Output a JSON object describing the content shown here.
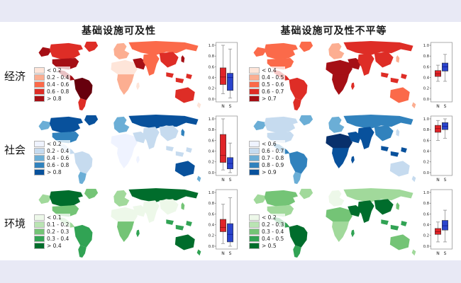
{
  "figure": {
    "columns": [
      {
        "title": "基础设施可及性"
      },
      {
        "title": "基础设施可及性不平等"
      }
    ],
    "rows": [
      {
        "label": "经济"
      },
      {
        "label": "社会"
      },
      {
        "label": "环境"
      }
    ]
  },
  "colors": {
    "band_background": "#e8e9f5",
    "north_box": "#e02428",
    "south_box": "#2a44cc"
  },
  "chart_data": {
    "type": "choropleth-maps-with-boxplots",
    "boxplot_groups": [
      "N",
      "S"
    ],
    "panels": [
      {
        "id": "economy-accessibility",
        "row": "经济",
        "column": "基础设施可及性",
        "palette": "reds",
        "legend": [
          {
            "label": "< 0.2",
            "color": "#fee5d9"
          },
          {
            "label": "0.2 - 0.4",
            "color": "#fcae91"
          },
          {
            "label": "0.4 - 0.6",
            "color": "#fb6a4a"
          },
          {
            "label": "0.6 - 0.8",
            "color": "#de2d26"
          },
          {
            "label": "> 0.8",
            "color": "#a50f15"
          }
        ],
        "map_regions": {
          "alaska": "#a50f15",
          "canada": "#de2d26",
          "usa": "#a50f15",
          "greenland": "#de2d26",
          "mexico": "#a50f15",
          "sa_n": "#67000d",
          "sa_s": "#de2d26",
          "europe": "#fcae91",
          "africa_n": "#fee5d9",
          "africa_s": "#fcae91",
          "madagascar": "#fee5d9",
          "russia": "#fb6a4a",
          "middle_east": "#a50f15",
          "central_asia": "#fb6a4a",
          "china": "#de2d26",
          "japan": "#a50f15",
          "se_asia": "#de2d26",
          "australia": "#de2d26",
          "nz": "#fee5d9"
        },
        "boxplot": {
          "ylim": [
            0,
            1
          ],
          "ticks": [
            1.0,
            0.8,
            0.6,
            0.4,
            0.2,
            0.0
          ],
          "groups": [
            {
              "label": "N",
              "color": "#e02428",
              "median_color": "#8f1014",
              "whisker_low": 0.1,
              "q1": 0.27,
              "median": 0.41,
              "q3": 0.58,
              "whisker_high": 1.0
            },
            {
              "label": "S",
              "color": "#2a44cc",
              "median_color": "#101e96",
              "whisker_low": 0.02,
              "q1": 0.16,
              "median": 0.4,
              "q3": 0.48,
              "whisker_high": 0.93
            }
          ]
        }
      },
      {
        "id": "economy-inequality",
        "row": "经济",
        "column": "基础设施可及性不平等",
        "palette": "reds",
        "legend": [
          {
            "label": "< 0.4",
            "color": "#fee5d9"
          },
          {
            "label": "0.4 - 0.5",
            "color": "#fcae91"
          },
          {
            "label": "0.5 - 0.6",
            "color": "#fb6a4a"
          },
          {
            "label": "0.6 - 0.7",
            "color": "#de2d26"
          },
          {
            "label": "> 0.7",
            "color": "#a50f15"
          }
        ],
        "map_regions": {
          "alaska": "#fb6a4a",
          "canada": "#fb6a4a",
          "usa": "#fb6a4a",
          "greenland": "#fb6a4a",
          "mexico": "#de2d26",
          "sa_n": "#de2d26",
          "sa_s": "#de2d26",
          "europe": "#fcae91",
          "africa_n": "#a50f15",
          "africa_s": "#a50f15",
          "madagascar": "#de2d26",
          "russia": "#de2d26",
          "middle_east": "#a50f15",
          "central_asia": "#de2d26",
          "china": "#de2d26",
          "japan": "#fcae91",
          "se_asia": "#de2d26",
          "australia": "#fb6a4a",
          "nz": "#fcae91"
        },
        "boxplot": {
          "ylim": [
            0,
            1
          ],
          "ticks": [
            1.0,
            0.8,
            0.6,
            0.4,
            0.2,
            0.0
          ],
          "groups": [
            {
              "label": "N",
              "color": "#e02428",
              "median_color": "#8f1014",
              "whisker_low": 0.33,
              "q1": 0.42,
              "median": 0.47,
              "q3": 0.53,
              "whisker_high": 0.63
            },
            {
              "label": "S",
              "color": "#2a44cc",
              "median_color": "#101e96",
              "whisker_low": 0.33,
              "q1": 0.52,
              "median": 0.6,
              "q3": 0.67,
              "whisker_high": 0.83
            }
          ]
        }
      },
      {
        "id": "society-accessibility",
        "row": "社会",
        "column": "基础设施可及性",
        "palette": "blues",
        "legend": [
          {
            "label": "< 0.2",
            "color": "#eff3ff"
          },
          {
            "label": "0.2 - 0.4",
            "color": "#c6dbef"
          },
          {
            "label": "0.4 - 0.6",
            "color": "#6baed6"
          },
          {
            "label": "0.6 - 0.8",
            "color": "#3182bd"
          },
          {
            "label": "> 0.8",
            "color": "#08519c"
          }
        ],
        "map_regions": {
          "alaska": "#6baed6",
          "canada": "#08519c",
          "usa": "#3182bd",
          "greenland": "#08519c",
          "mexico": "#c6dbef",
          "sa_n": "#c6dbef",
          "sa_s": "#6baed6",
          "europe": "#6baed6",
          "africa_n": "#eff3ff",
          "africa_s": "#eff3ff",
          "madagascar": "#eff3ff",
          "russia": "#08519c",
          "middle_east": "#c6dbef",
          "central_asia": "#c6dbef",
          "china": "#c6dbef",
          "japan": "#3182bd",
          "se_asia": "#c6dbef",
          "australia": "#08519c",
          "nz": "#6baed6"
        },
        "boxplot": {
          "ylim": [
            0,
            1
          ],
          "ticks": [
            1.0,
            0.8,
            0.6,
            0.4,
            0.2,
            0.0
          ],
          "groups": [
            {
              "label": "N",
              "color": "#e02428",
              "median_color": "#8f1014",
              "whisker_low": 0.05,
              "q1": 0.19,
              "median": 0.32,
              "q3": 0.71,
              "whisker_high": 1.0
            },
            {
              "label": "S",
              "color": "#2a44cc",
              "median_color": "#101e96",
              "whisker_low": 0.0,
              "q1": 0.07,
              "median": 0.17,
              "q3": 0.28,
              "whisker_high": 0.55
            }
          ]
        }
      },
      {
        "id": "society-inequality",
        "row": "社会",
        "column": "基础设施可及性不平等",
        "palette": "blues",
        "legend": [
          {
            "label": "< 0.6",
            "color": "#eff3ff"
          },
          {
            "label": "0.6 - 0.7",
            "color": "#c6dbef"
          },
          {
            "label": "0.7 - 0.8",
            "color": "#6baed6"
          },
          {
            "label": "0.8 - 0.9",
            "color": "#3182bd"
          },
          {
            "label": "> 0.9",
            "color": "#08519c"
          }
        ],
        "map_regions": {
          "alaska": "#6baed6",
          "canada": "#c6dbef",
          "usa": "#c6dbef",
          "greenland": "#6baed6",
          "mexico": "#3182bd",
          "sa_n": "#3182bd",
          "sa_s": "#6baed6",
          "europe": "#6baed6",
          "africa_n": "#08306b",
          "africa_s": "#08519c",
          "madagascar": "#08519c",
          "russia": "#3182bd",
          "middle_east": "#08519c",
          "central_asia": "#08519c",
          "china": "#3182bd",
          "japan": "#c6dbef",
          "se_asia": "#08519c",
          "australia": "#c6dbef",
          "nz": "#c6dbef"
        },
        "boxplot": {
          "ylim": [
            0,
            1
          ],
          "ticks": [
            1.0,
            0.8,
            0.6,
            0.4,
            0.2,
            0.0
          ],
          "groups": [
            {
              "label": "N",
              "color": "#e02428",
              "median_color": "#8f1014",
              "whisker_low": 0.6,
              "q1": 0.75,
              "median": 0.82,
              "q3": 0.88,
              "whisker_high": 0.97
            },
            {
              "label": "S",
              "color": "#2a44cc",
              "median_color": "#101e96",
              "whisker_low": 0.64,
              "q1": 0.8,
              "median": 0.86,
              "q3": 0.93,
              "whisker_high": 1.0
            }
          ]
        }
      },
      {
        "id": "environment-accessibility",
        "row": "环境",
        "column": "基础设施可及性",
        "palette": "greens",
        "legend": [
          {
            "label": "< 0.1",
            "color": "#edf8e9"
          },
          {
            "label": "0.1 - 0.2",
            "color": "#bae4b3"
          },
          {
            "label": "0.2 - 0.3",
            "color": "#74c476"
          },
          {
            "label": "0.3 - 0.4",
            "color": "#31a354"
          },
          {
            "label": "> 0.4",
            "color": "#006d2c"
          }
        ],
        "map_regions": {
          "alaska": "#a1d99b",
          "canada": "#006d2c",
          "usa": "#74c476",
          "greenland": "#74c476",
          "mexico": "#a1d99b",
          "sa_n": "#31a354",
          "sa_s": "#31a354",
          "europe": "#a1d99b",
          "africa_n": "#edf8e9",
          "africa_s": "#74c476",
          "madagascar": "#31a354",
          "russia": "#006d2c",
          "middle_east": "#edf8e9",
          "central_asia": "#edf8e9",
          "china": "#edf8e9",
          "japan": "#74c476",
          "se_asia": "#31a354",
          "australia": "#006d2c",
          "nz": "#31a354"
        },
        "boxplot": {
          "ylim": [
            0,
            1
          ],
          "ticks": [
            1.0,
            0.8,
            0.6,
            0.4,
            0.2,
            0.0
          ],
          "groups": [
            {
              "label": "N",
              "color": "#e02428",
              "median_color": "#8f1014",
              "whisker_low": 0.05,
              "q1": 0.27,
              "median": 0.35,
              "q3": 0.5,
              "whisker_high": 0.78
            },
            {
              "label": "S",
              "color": "#2a44cc",
              "median_color": "#101e96",
              "whisker_low": 0.0,
              "q1": 0.08,
              "median": 0.22,
              "q3": 0.42,
              "whisker_high": 0.9
            }
          ]
        }
      },
      {
        "id": "environment-inequality",
        "row": "环境",
        "column": "基础设施可及性不平等",
        "palette": "greens",
        "legend": [
          {
            "label": "< 0.2",
            "color": "#edf8e9"
          },
          {
            "label": "0.2 - 0.3",
            "color": "#bae4b3"
          },
          {
            "label": "0.3 - 0.4",
            "color": "#74c476"
          },
          {
            "label": "0.4 - 0.5",
            "color": "#31a354"
          },
          {
            "label": "> 0.5",
            "color": "#006d2c"
          }
        ],
        "map_regions": {
          "alaska": "#a1d99b",
          "canada": "#74c476",
          "usa": "#a1d99b",
          "greenland": "#a1d99b",
          "mexico": "#31a354",
          "sa_n": "#006d2c",
          "sa_s": "#31a354",
          "europe": "#edf8e9",
          "africa_n": "#74c476",
          "africa_s": "#a1d99b",
          "madagascar": "#31a354",
          "russia": "#a1d99b",
          "middle_east": "#006d2c",
          "central_asia": "#006d2c",
          "china": "#006d2c",
          "japan": "#74c476",
          "se_asia": "#31a354",
          "australia": "#74c476",
          "nz": "#a1d99b"
        },
        "boxplot": {
          "ylim": [
            0,
            1
          ],
          "ticks": [
            1.0,
            0.8,
            0.6,
            0.4,
            0.2,
            0.0
          ],
          "groups": [
            {
              "label": "N",
              "color": "#e02428",
              "median_color": "#8f1014",
              "whisker_low": 0.08,
              "q1": 0.22,
              "median": 0.27,
              "q3": 0.33,
              "whisker_high": 0.45
            },
            {
              "label": "S",
              "color": "#2a44cc",
              "median_color": "#101e96",
              "whisker_low": 0.08,
              "q1": 0.3,
              "median": 0.38,
              "q3": 0.48,
              "whisker_high": 0.67
            }
          ]
        }
      }
    ]
  }
}
